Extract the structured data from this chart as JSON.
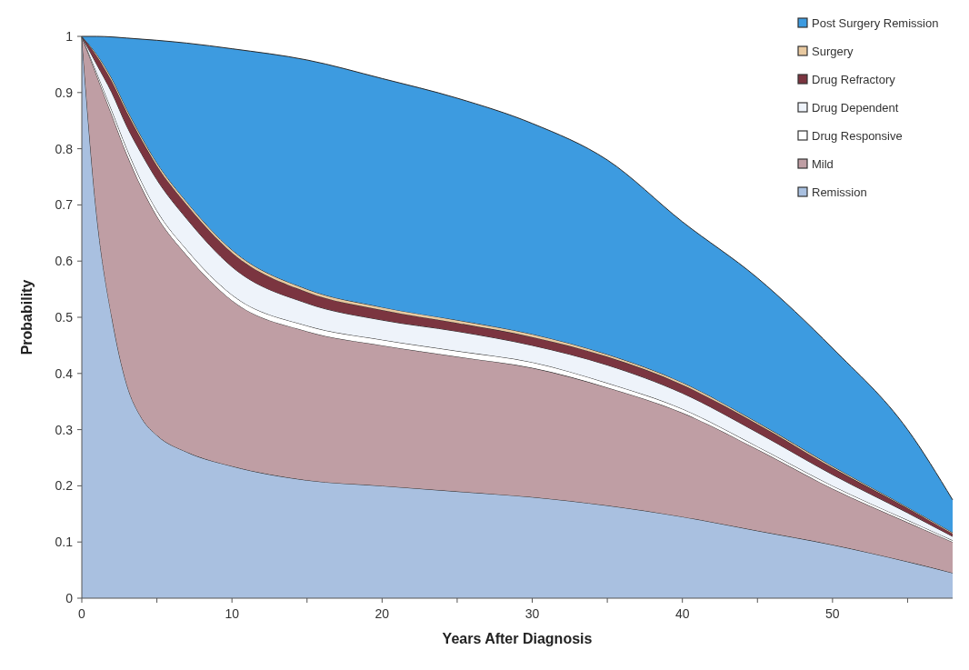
{
  "chart_data": {
    "type": "area",
    "stacked": true,
    "xlabel": "Years After Diagnosis",
    "ylabel": "Probability",
    "legend": "top right",
    "x": [
      0,
      1,
      2,
      3,
      4,
      5,
      7,
      10,
      15,
      20,
      25,
      30,
      35,
      40,
      45,
      50,
      55,
      58
    ],
    "series": [
      {
        "name": "Remission",
        "color": "#a9c0e0",
        "values": [
          1.0,
          0.68,
          0.5,
          0.38,
          0.32,
          0.29,
          0.26,
          0.235,
          0.21,
          0.2,
          0.19,
          0.18,
          0.165,
          0.145,
          0.12,
          0.095,
          0.065,
          0.045
        ]
      },
      {
        "name": "Mild",
        "color": "#bf9ea4",
        "values": [
          0,
          0.25,
          0.36,
          0.41,
          0.41,
          0.39,
          0.35,
          0.295,
          0.265,
          0.25,
          0.24,
          0.23,
          0.21,
          0.185,
          0.145,
          0.1,
          0.07,
          0.055
        ]
      },
      {
        "name": "Drug Responsive",
        "color": "#ffffff",
        "values": [
          0,
          0.005,
          0.008,
          0.01,
          0.01,
          0.01,
          0.01,
          0.01,
          0.01,
          0.01,
          0.01,
          0.01,
          0.008,
          0.007,
          0.005,
          0.005,
          0.004,
          0.003
        ]
      },
      {
        "name": "Drug Dependent",
        "color": "#eef3fa",
        "values": [
          0,
          0.015,
          0.032,
          0.04,
          0.05,
          0.055,
          0.055,
          0.05,
          0.04,
          0.035,
          0.035,
          0.03,
          0.032,
          0.028,
          0.025,
          0.02,
          0.013,
          0.007
        ]
      },
      {
        "name": "Drug Refractory",
        "color": "#7b3540",
        "values": [
          0,
          0.015,
          0.02,
          0.025,
          0.025,
          0.025,
          0.025,
          0.025,
          0.02,
          0.018,
          0.015,
          0.015,
          0.015,
          0.015,
          0.015,
          0.012,
          0.008,
          0.005
        ]
      },
      {
        "name": "Surgery",
        "color": "#e8c9a0",
        "values": [
          0,
          0.003,
          0.005,
          0.005,
          0.005,
          0.005,
          0.005,
          0.005,
          0.005,
          0.005,
          0.005,
          0.005,
          0.004,
          0.004,
          0.003,
          0.003,
          0.002,
          0.002
        ]
      },
      {
        "name": "Post Surgery Remission",
        "color": "#3d9be0",
        "values": [
          0,
          0.032,
          0.074,
          0.127,
          0.175,
          0.218,
          0.283,
          0.358,
          0.408,
          0.407,
          0.395,
          0.375,
          0.346,
          0.286,
          0.257,
          0.21,
          0.138,
          0.058
        ]
      }
    ],
    "xlim": [
      0,
      58
    ],
    "ylim": [
      0,
      1
    ],
    "xticks": [
      0,
      {
        "value": 5,
        "label": null
      },
      10,
      {
        "value": 15,
        "label": null
      },
      20,
      {
        "value": 25,
        "label": null
      },
      30,
      {
        "value": 35,
        "label": null
      },
      40,
      {
        "value": 45,
        "label": null
      },
      50,
      {
        "value": 55,
        "label": null
      }
    ],
    "yticks": [
      0,
      0.1,
      0.2,
      0.3,
      0.4,
      0.5,
      0.6,
      0.7,
      0.8,
      0.9,
      1
    ]
  }
}
